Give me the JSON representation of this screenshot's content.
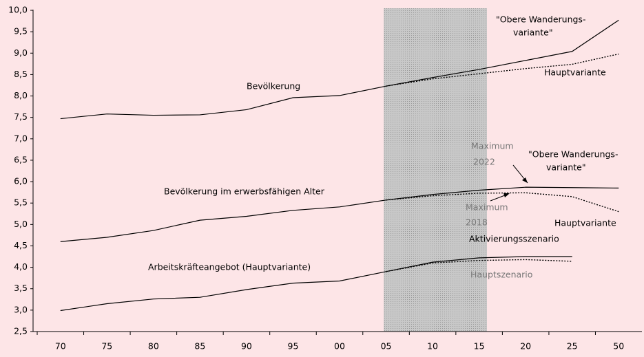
{
  "chart_data": {
    "type": "line",
    "categories": [
      "70",
      "75",
      "80",
      "85",
      "90",
      "95",
      "00",
      "05",
      "10",
      "15",
      "20",
      "25",
      "50"
    ],
    "series": [
      {
        "name": "Bevölkerung",
        "color": "#000000",
        "dash": "solid",
        "values": [
          7.47,
          7.58,
          7.55,
          7.56,
          7.68,
          7.96,
          8.01,
          8.23,
          8.43,
          8.62,
          8.83,
          9.04,
          9.77
        ]
      },
      {
        "name": "Hauptvariante",
        "color": "#000000",
        "dash": "dotted",
        "values": [
          null,
          null,
          null,
          null,
          null,
          null,
          null,
          8.23,
          8.4,
          8.52,
          8.64,
          8.74,
          8.98
        ]
      },
      {
        "name": "Bevölkerung im erwerbsfähigen Alter",
        "color": "#000000",
        "dash": "solid",
        "values": [
          4.6,
          4.7,
          4.86,
          5.1,
          5.19,
          5.33,
          5.41,
          5.57,
          5.7,
          5.8,
          5.87,
          5.86,
          5.85
        ]
      },
      {
        "name": "Hauptvariante",
        "color": "#000000",
        "dash": "dotted",
        "values": [
          null,
          null,
          null,
          null,
          null,
          null,
          null,
          5.57,
          5.67,
          5.73,
          5.74,
          5.65,
          5.3
        ]
      },
      {
        "name": "Arbeitskräfteangebot (Hauptvariante)",
        "color": "#000000",
        "dash": "solid",
        "values": [
          2.99,
          3.15,
          3.26,
          3.3,
          3.48,
          3.63,
          3.68,
          3.9,
          4.12,
          4.22,
          4.25,
          4.25,
          null
        ]
      },
      {
        "name": "Hauptszenario",
        "color": "#000000",
        "dash": "dotted",
        "values": [
          null,
          null,
          null,
          null,
          null,
          null,
          null,
          3.9,
          4.1,
          4.16,
          4.18,
          4.14,
          null
        ]
      }
    ],
    "annotations": [
      "\"Obere Wanderungs-",
      "variante\"",
      "\"Obere Wanderungs-",
      "variante\"",
      "Maximum",
      "2022",
      "Maximum",
      "2018",
      "Aktivierungsszenario"
    ],
    "ylim": [
      2.5,
      10
    ],
    "yticks": [
      {
        "value": 2.5,
        "label": "2,5"
      },
      {
        "value": 3,
        "label": "3,0"
      },
      {
        "value": 3.5,
        "label": "3,5"
      },
      {
        "value": 4,
        "label": "4,0"
      },
      {
        "value": 4.5,
        "label": "4,5"
      },
      {
        "value": 5,
        "label": "5,0"
      },
      {
        "value": 5.5,
        "label": "5,5"
      },
      {
        "value": 6,
        "label": "6,0"
      },
      {
        "value": 6.5,
        "label": "6,5"
      },
      {
        "value": 7,
        "label": "7,0"
      },
      {
        "value": 7.5,
        "label": "7,5"
      },
      {
        "value": 8,
        "label": "8,0"
      },
      {
        "value": 8.5,
        "label": "8,5"
      },
      {
        "value": 9,
        "label": "9,0"
      },
      {
        "value": 9.5,
        "label": "9,5"
      },
      {
        "value": 10,
        "label": "10,0"
      }
    ],
    "grid": false
  }
}
